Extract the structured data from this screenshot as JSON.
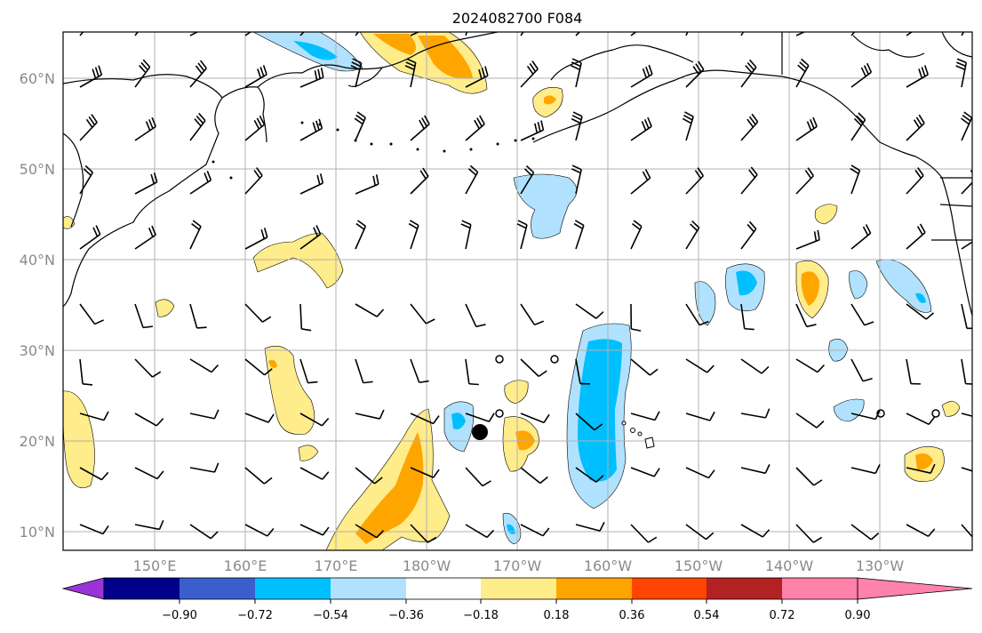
{
  "title": "2024082700 F084",
  "map": {
    "lat_labels": [
      "60°N",
      "50°N",
      "40°N",
      "30°N",
      "20°N",
      "10°N"
    ],
    "lon_labels": [
      "150°E",
      "160°E",
      "170°E",
      "180°W",
      "170°W",
      "160°W",
      "150°W",
      "140°W",
      "130°W"
    ],
    "grid": true,
    "storm_marker": "filled-circle",
    "colors": {
      "neg_090": "#9a34d8",
      "neg_072": "#00008b",
      "neg_054": "#3a5fcd",
      "neg_036": "#00bfff",
      "neg_018": "#b0e2ff",
      "neutral": "#ffffff",
      "pos_018": "#ffec8b",
      "pos_036": "#ffa500",
      "pos_054": "#ff4500",
      "pos_072": "#b22222",
      "pos_090": "#ff82ab"
    }
  },
  "colorbar": {
    "tick_labels": [
      "−0.90",
      "−0.72",
      "−0.54",
      "−0.36",
      "−0.18",
      "0.18",
      "0.36",
      "0.54",
      "0.72",
      "0.90"
    ],
    "colors": [
      "#9a34d8",
      "#00008b",
      "#3a5fcd",
      "#00bfff",
      "#b0e2ff",
      "#ffffff",
      "#ffec8b",
      "#ffa500",
      "#ff4500",
      "#b22222",
      "#ff82ab"
    ]
  }
}
